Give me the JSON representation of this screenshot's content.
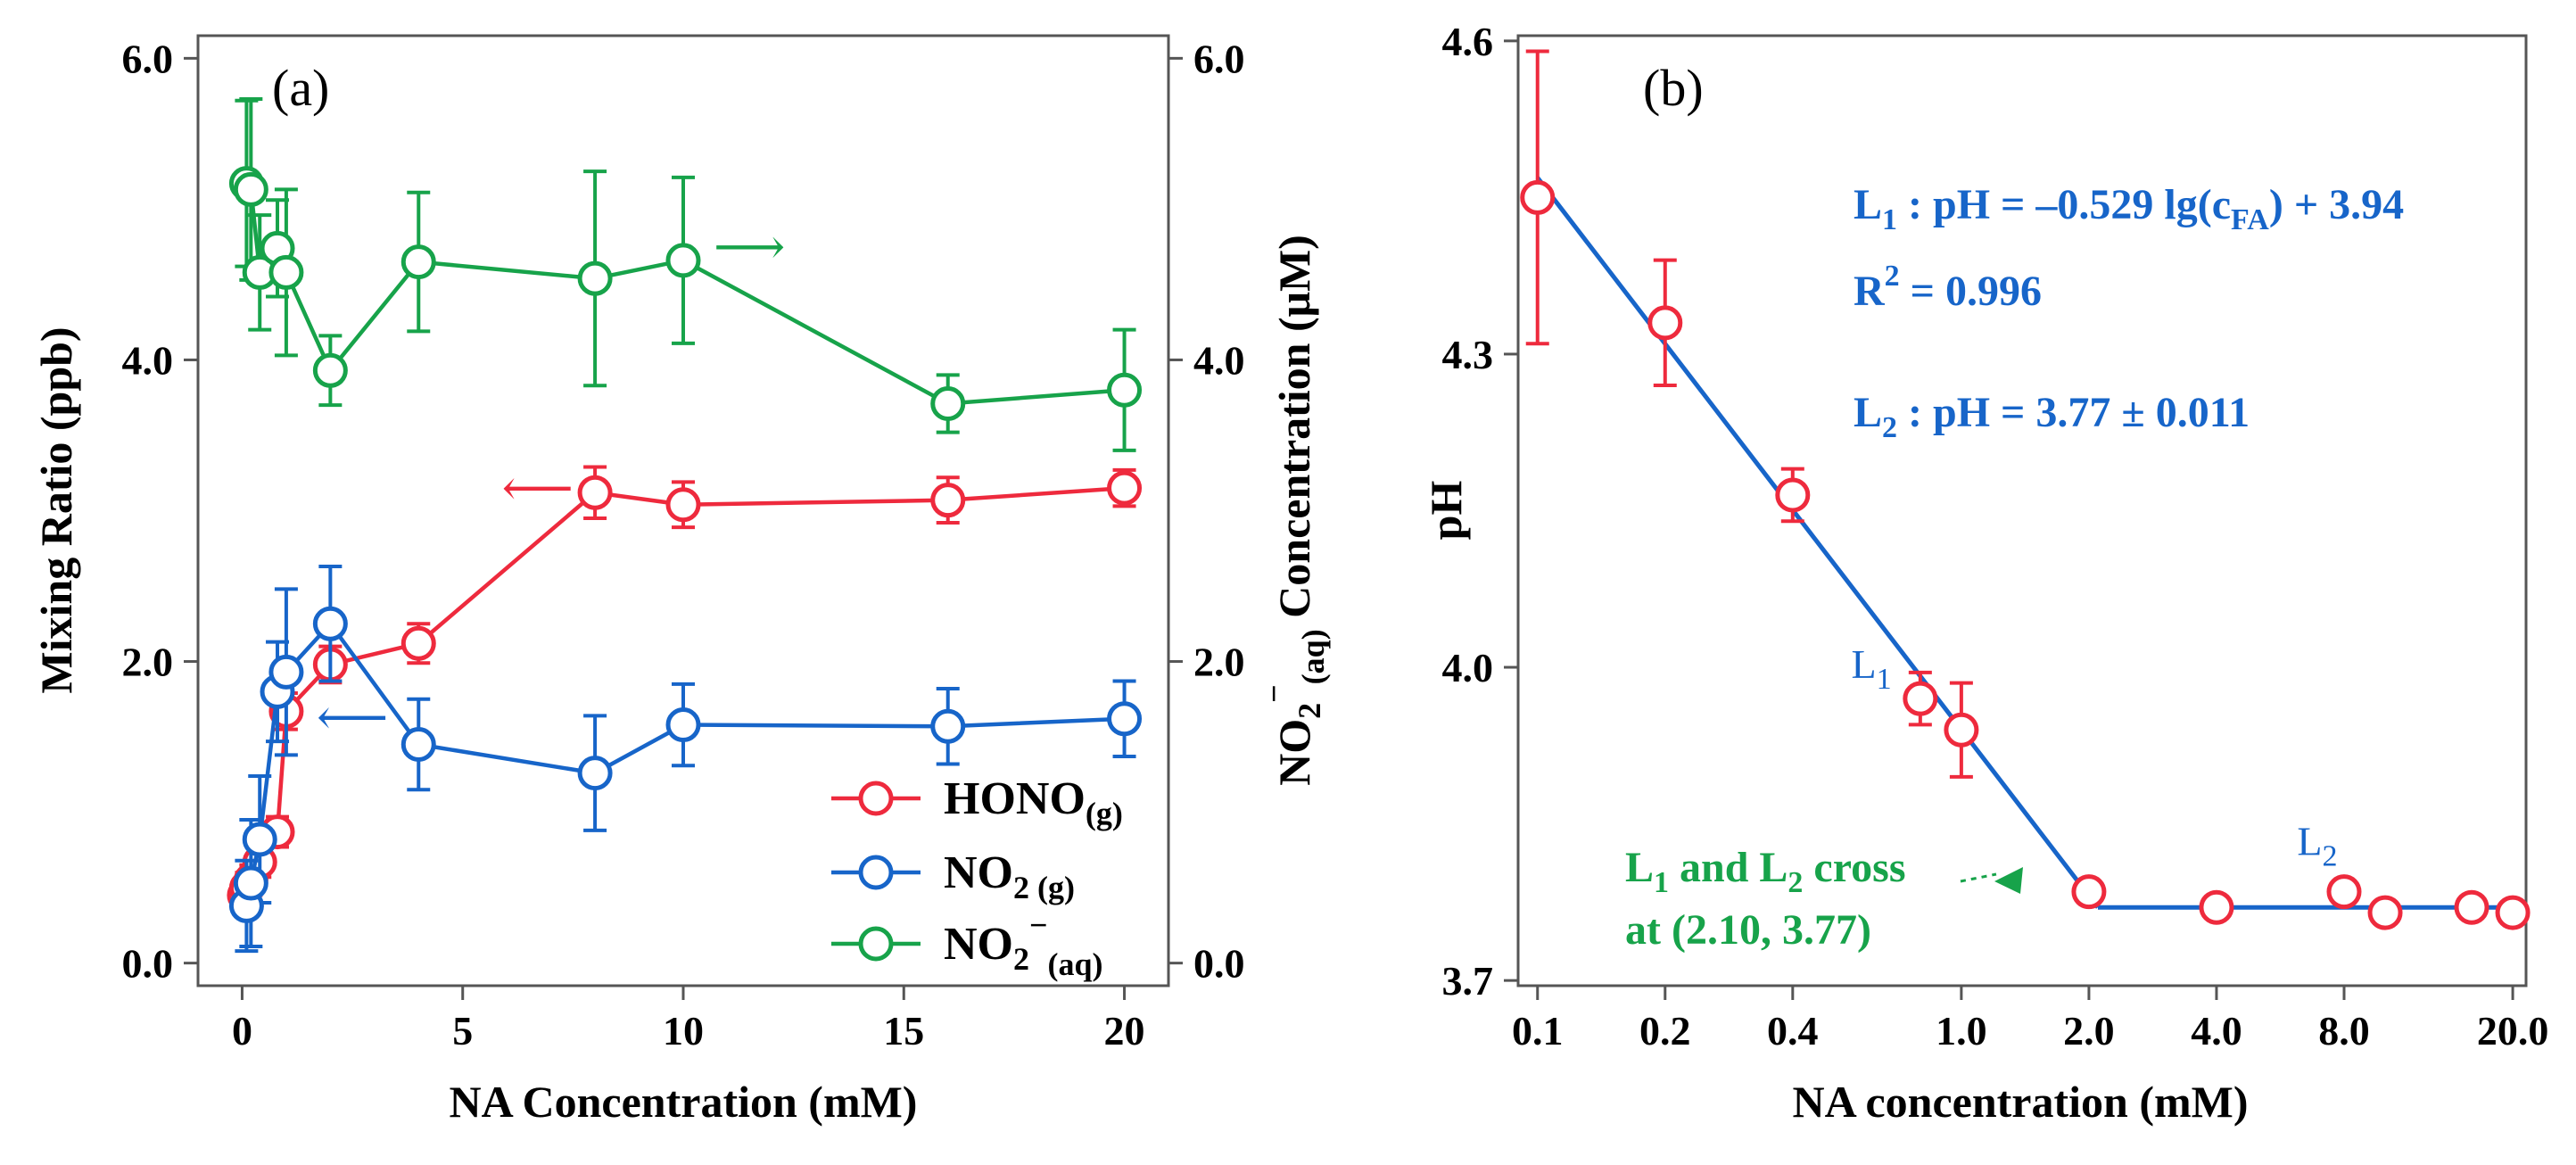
{
  "chart_data": [
    {
      "type": "line",
      "panel_label": "(a)",
      "xlabel": "NA Concentration (mM)",
      "ylabel": "Mixing Ratio (ppb)",
      "y2label_parts": {
        "pre": "NO",
        "sub1": "2",
        "sup": "−",
        "sub2": "(aq)",
        "post": " Concentration (μM)"
      },
      "xlim": [
        -1,
        21
      ],
      "ylim": [
        -0.15,
        6.15
      ],
      "y2lim": [
        -0.15,
        6.15
      ],
      "xticks": [
        0,
        5,
        10,
        15,
        20
      ],
      "xtick_labels": [
        "0",
        "5",
        "10",
        "15",
        "20"
      ],
      "yticks": [
        0,
        2,
        4,
        6
      ],
      "ytick_labels": [
        "0.0",
        "2.0",
        "4.0",
        "6.0"
      ],
      "y2ticks": [
        0,
        2,
        4,
        6
      ],
      "y2tick_labels": [
        "0.0",
        "2.0",
        "4.0",
        "6.0"
      ],
      "series": [
        {
          "name": "HONO(g)",
          "legend": {
            "main": "HONO",
            "sub": "(g)"
          },
          "color": "#EE2A3D",
          "x": [
            0.05,
            0.1,
            0.2,
            0.4,
            0.8,
            1,
            2,
            4,
            8,
            10,
            16,
            20
          ],
          "y": [
            0.45,
            0.5,
            0.55,
            0.67,
            0.87,
            1.67,
            1.98,
            2.12,
            3.12,
            3.04,
            3.07,
            3.15
          ],
          "err": [
            0.1,
            0.1,
            0.1,
            0.1,
            0.1,
            0.12,
            0.12,
            0.13,
            0.17,
            0.15,
            0.15,
            0.12
          ],
          "axis": "left"
        },
        {
          "name": "NO2(g)",
          "legend": {
            "main": "NO",
            "sub": "2 (g)"
          },
          "color": "#1765C9",
          "x": [
            0.1,
            0.2,
            0.4,
            0.8,
            1,
            2,
            4,
            8,
            10,
            16,
            20
          ],
          "y": [
            0.38,
            0.53,
            0.82,
            1.8,
            1.93,
            2.25,
            1.45,
            1.26,
            1.58,
            1.57,
            1.62
          ],
          "err": [
            0.3,
            0.42,
            0.42,
            0.33,
            0.55,
            0.38,
            0.3,
            0.38,
            0.27,
            0.25,
            0.25
          ],
          "axis": "left"
        },
        {
          "name": "NO2-(aq)",
          "legend": {
            "main": "NO",
            "sub": "2",
            "sup": "−",
            "sub2": "(aq)"
          },
          "color": "#17A34A",
          "x": [
            0.1,
            0.2,
            0.4,
            0.8,
            1,
            2,
            4,
            8,
            10,
            16,
            20
          ],
          "y": [
            5.17,
            5.13,
            4.58,
            4.74,
            4.58,
            3.93,
            4.65,
            4.54,
            4.66,
            3.71,
            3.8
          ],
          "err": [
            0.55,
            0.6,
            0.38,
            0.32,
            0.55,
            0.23,
            0.46,
            0.71,
            0.55,
            0.19,
            0.4
          ],
          "axis": "right"
        }
      ],
      "annotations": [
        {
          "text": "⟶",
          "x": 11.5,
          "y": 4.72,
          "color": "#17A34A"
        },
        {
          "text": "⟵",
          "x": 6.7,
          "y": 3.12,
          "color": "#EE2A3D"
        },
        {
          "text": "⟵",
          "x": 2.5,
          "y": 1.6,
          "color": "#1765C9"
        }
      ]
    },
    {
      "type": "line",
      "panel_label": "(b)",
      "xlabel": "NA concentration (mM)",
      "ylabel": "pH",
      "xscale": "log",
      "xlim": [
        0.09,
        21.5
      ],
      "ylim": [
        3.695,
        4.605
      ],
      "xticks": [
        0.1,
        0.2,
        0.4,
        1.0,
        2.0,
        4.0,
        8.0,
        20.0
      ],
      "xtick_labels": [
        "0.1",
        "0.2",
        "0.4",
        "1.0",
        "2.0",
        "4.0",
        "8.0",
        "20.0"
      ],
      "yticks": [
        3.7,
        4.0,
        4.3,
        4.6
      ],
      "ytick_labels": [
        "3.7",
        "4.0",
        "4.3",
        "4.6"
      ],
      "series": [
        {
          "name": "pH",
          "color": "#EE2A3D",
          "x": [
            0.1,
            0.2,
            0.4,
            0.8,
            1.0,
            2.0,
            4.0,
            8.0,
            10.0,
            16.0,
            20.0
          ],
          "y": [
            4.45,
            4.33,
            4.165,
            3.97,
            3.94,
            3.785,
            3.77,
            3.785,
            3.765,
            3.77,
            3.765
          ],
          "err": [
            0.14,
            0.06,
            0.025,
            0.025,
            0.045,
            0,
            0,
            0,
            0,
            0,
            0
          ]
        }
      ],
      "fit_color": "#1765C9",
      "fits": [
        {
          "name": "L1",
          "x": [
            0.1,
            2.1
          ],
          "y": [
            4.469,
            3.77
          ]
        },
        {
          "name": "L2",
          "x": [
            2.1,
            20.0
          ],
          "y": [
            3.77,
            3.77
          ]
        }
      ],
      "equations": [
        {
          "main": "L",
          "sub": "1",
          "text": " : pH = –0.529 lg(c",
          "sub2": "FA",
          "text2": ") + 3.94"
        },
        {
          "main": "R",
          "sup": "2",
          "text": " = 0.996"
        },
        {
          "main": "L",
          "sub": "2",
          "text": " : pH = 3.77 ± 0.011"
        }
      ],
      "line_labels": [
        {
          "main": "L",
          "sub": "1",
          "x": 0.55,
          "y": 3.99
        },
        {
          "main": "L",
          "sub": "2",
          "x": 6.2,
          "y": 3.82
        }
      ],
      "cross_annotation": {
        "color": "#17A34A",
        "line1": {
          "a": "L",
          "s1": "1",
          "b": " and L",
          "s2": "2",
          "c": " cross"
        },
        "line2": "at (2.10, 3.77)",
        "target": {
          "x": 2.1,
          "y": 3.77
        }
      }
    }
  ]
}
